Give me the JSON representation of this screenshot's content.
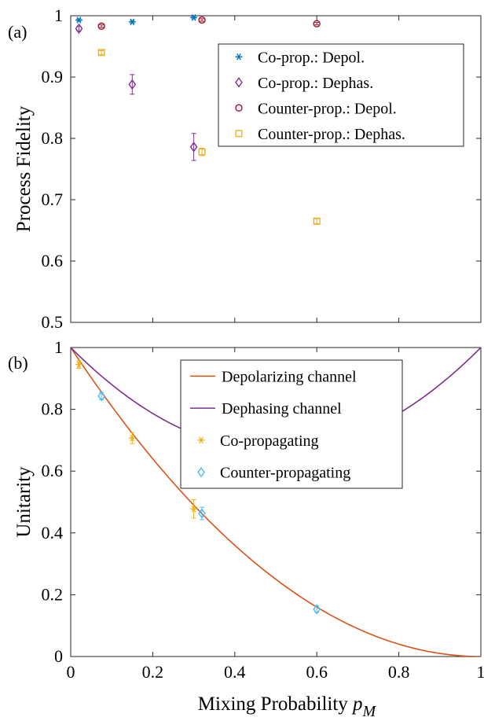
{
  "chart_data": [
    {
      "panel": "(a)",
      "type": "scatter",
      "title": "",
      "xlabel": "",
      "ylabel": "Process Fidelity",
      "xlim": [
        0,
        1
      ],
      "ylim": [
        0.5,
        1
      ],
      "xticks": [],
      "yticks": [
        "0.5",
        "0.6",
        "0.7",
        "0.8",
        "0.9",
        "1"
      ],
      "grid": false,
      "legend_position": "top-right",
      "series": [
        {
          "name": "Co-prop.: Depol.",
          "color": "#0072BD",
          "marker": "asterisk",
          "x": [
            0.02,
            0.15,
            0.3
          ],
          "y": [
            0.993,
            0.99,
            0.997
          ],
          "err": [
            0.002,
            0.002,
            0.002
          ]
        },
        {
          "name": "Co-prop.: Dephas.",
          "color": "#7E2F8E",
          "marker": "diamond",
          "x": [
            0.02,
            0.15,
            0.3
          ],
          "y": [
            0.979,
            0.888,
            0.786
          ],
          "err": [
            0.004,
            0.016,
            0.022
          ]
        },
        {
          "name": "Counter-prop.: Depol.",
          "color": "#A2142F",
          "marker": "circle",
          "x": [
            0.075,
            0.32,
            0.6
          ],
          "y": [
            0.983,
            0.993,
            0.987
          ],
          "err": [
            0.002,
            0.002,
            0.002
          ]
        },
        {
          "name": "Counter-prop.: Dephas.",
          "color": "#EDB120",
          "marker": "square",
          "x": [
            0.075,
            0.32,
            0.6
          ],
          "y": [
            0.94,
            0.778,
            0.665
          ],
          "err": [
            0.003,
            0.006,
            0.004
          ]
        }
      ]
    },
    {
      "panel": "(b)",
      "type": "line",
      "title": "",
      "xlabel": "Mixing Probability",
      "xlabel_math": "p",
      "xlabel_sub": "M",
      "ylabel": "Unitarity",
      "xlim": [
        0,
        1
      ],
      "ylim": [
        0,
        1
      ],
      "xticks": [
        "0",
        "0.2",
        "0.4",
        "0.6",
        "0.8",
        "1"
      ],
      "yticks": [
        "0",
        "0.2",
        "0.4",
        "0.6",
        "0.8",
        "1"
      ],
      "grid": false,
      "legend_position": "top",
      "series": [
        {
          "name": "Depolarizing channel",
          "color": "#D95319",
          "kind": "curve",
          "formula": "(1-p)^2"
        },
        {
          "name": "Dephasing channel",
          "color": "#7E2F8E",
          "kind": "curve",
          "formula": "1-4p/3+4p^2/3"
        },
        {
          "name": "Co-propagating",
          "color": "#EDB120",
          "marker": "asterisk",
          "x": [
            0.02,
            0.15,
            0.3
          ],
          "y": [
            0.945,
            0.707,
            0.478
          ],
          "err": [
            0.012,
            0.018,
            0.03
          ]
        },
        {
          "name": "Counter-propagating",
          "color": "#4DBEEE",
          "marker": "diamond",
          "x": [
            0.075,
            0.32,
            0.6
          ],
          "y": [
            0.843,
            0.463,
            0.153
          ],
          "err": [
            0.012,
            0.02,
            0.01
          ]
        }
      ]
    }
  ]
}
